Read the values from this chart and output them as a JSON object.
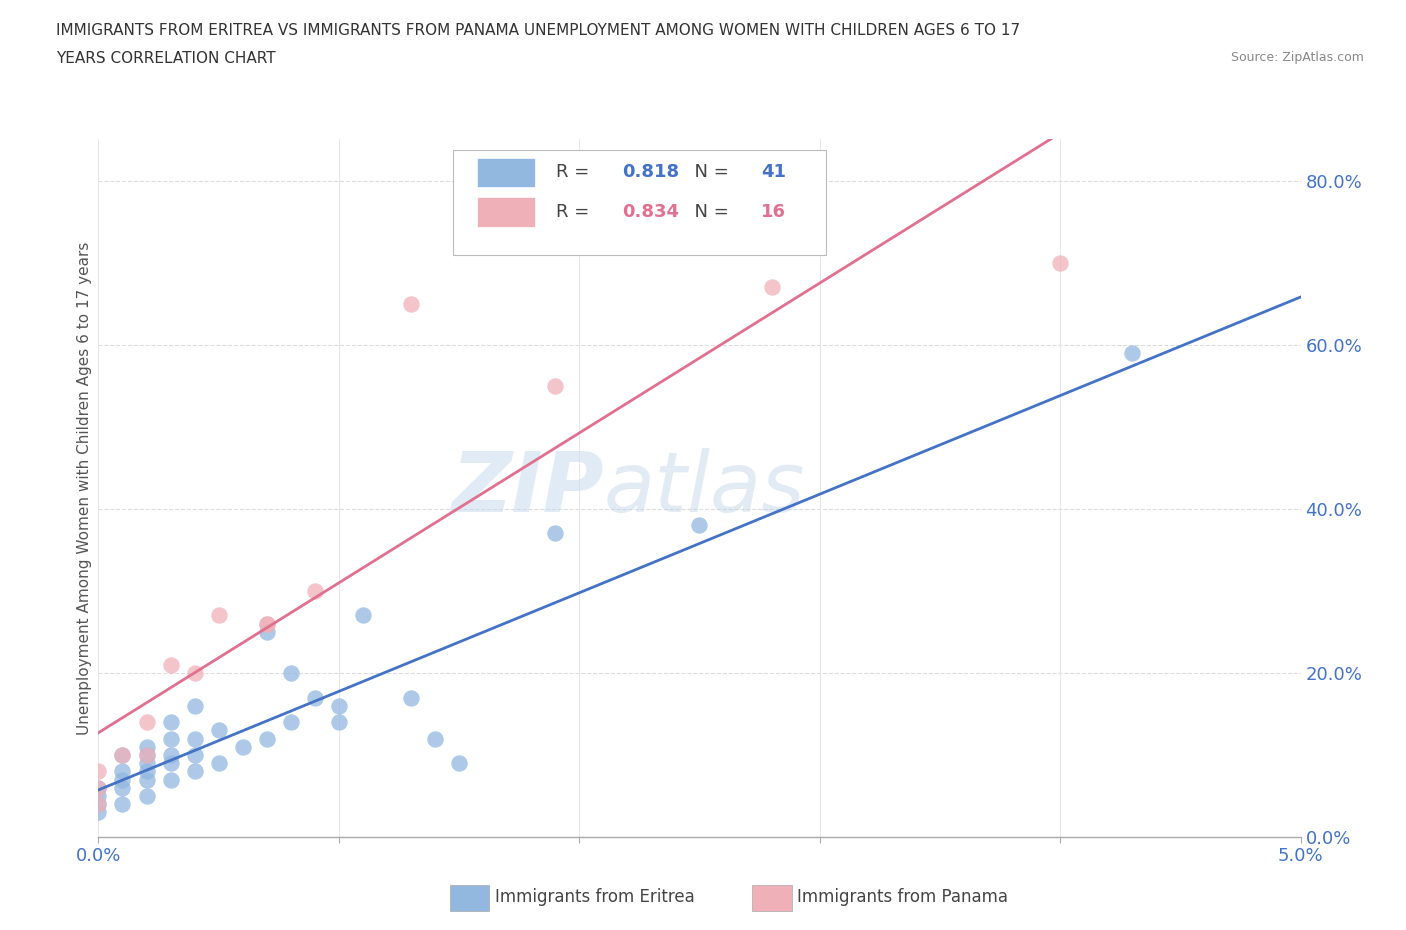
{
  "title_line1": "IMMIGRANTS FROM ERITREA VS IMMIGRANTS FROM PANAMA UNEMPLOYMENT AMONG WOMEN WITH CHILDREN AGES 6 TO 17",
  "title_line2": "YEARS CORRELATION CHART",
  "source": "Source: ZipAtlas.com",
  "ylabel": "Unemployment Among Women with Children Ages 6 to 17 years",
  "xlim": [
    0.0,
    0.05
  ],
  "ylim": [
    0.0,
    0.85
  ],
  "ytick_labels": [
    "0.0%",
    "20.0%",
    "40.0%",
    "60.0%",
    "80.0%"
  ],
  "ytick_vals": [
    0.0,
    0.2,
    0.4,
    0.6,
    0.8
  ],
  "xtick_vals": [
    0.0,
    0.01,
    0.02,
    0.03,
    0.04,
    0.05
  ],
  "eritrea_color": "#92b8e0",
  "panama_color": "#f0b0b8",
  "eritrea_line_color": "#4472c4",
  "panama_line_color": "#e07090",
  "R_eritrea": 0.818,
  "N_eritrea": 41,
  "R_panama": 0.834,
  "N_panama": 16,
  "eritrea_x": [
    0.0,
    0.0,
    0.0,
    0.0,
    0.001,
    0.001,
    0.001,
    0.001,
    0.001,
    0.002,
    0.002,
    0.002,
    0.002,
    0.002,
    0.002,
    0.003,
    0.003,
    0.003,
    0.003,
    0.003,
    0.004,
    0.004,
    0.004,
    0.004,
    0.005,
    0.005,
    0.006,
    0.007,
    0.007,
    0.008,
    0.008,
    0.009,
    0.01,
    0.01,
    0.011,
    0.013,
    0.014,
    0.015,
    0.019,
    0.025,
    0.043
  ],
  "eritrea_y": [
    0.03,
    0.04,
    0.05,
    0.06,
    0.04,
    0.06,
    0.07,
    0.08,
    0.1,
    0.05,
    0.07,
    0.08,
    0.09,
    0.1,
    0.11,
    0.07,
    0.09,
    0.1,
    0.12,
    0.14,
    0.08,
    0.1,
    0.12,
    0.16,
    0.09,
    0.13,
    0.11,
    0.12,
    0.25,
    0.14,
    0.2,
    0.17,
    0.14,
    0.16,
    0.27,
    0.17,
    0.12,
    0.09,
    0.37,
    0.38,
    0.59
  ],
  "panama_x": [
    0.0,
    0.0,
    0.0,
    0.001,
    0.002,
    0.002,
    0.003,
    0.004,
    0.005,
    0.007,
    0.007,
    0.009,
    0.013,
    0.019,
    0.028,
    0.04
  ],
  "panama_y": [
    0.04,
    0.06,
    0.08,
    0.1,
    0.1,
    0.14,
    0.21,
    0.2,
    0.27,
    0.26,
    0.26,
    0.3,
    0.65,
    0.55,
    0.67,
    0.7
  ],
  "watermark_zip": "ZIP",
  "watermark_atlas": "atlas",
  "background_color": "#ffffff",
  "grid_color": "#dddddd",
  "legend_eritrea_label": "Immigrants from Eritrea",
  "legend_panama_label": "Immigrants from Panama"
}
